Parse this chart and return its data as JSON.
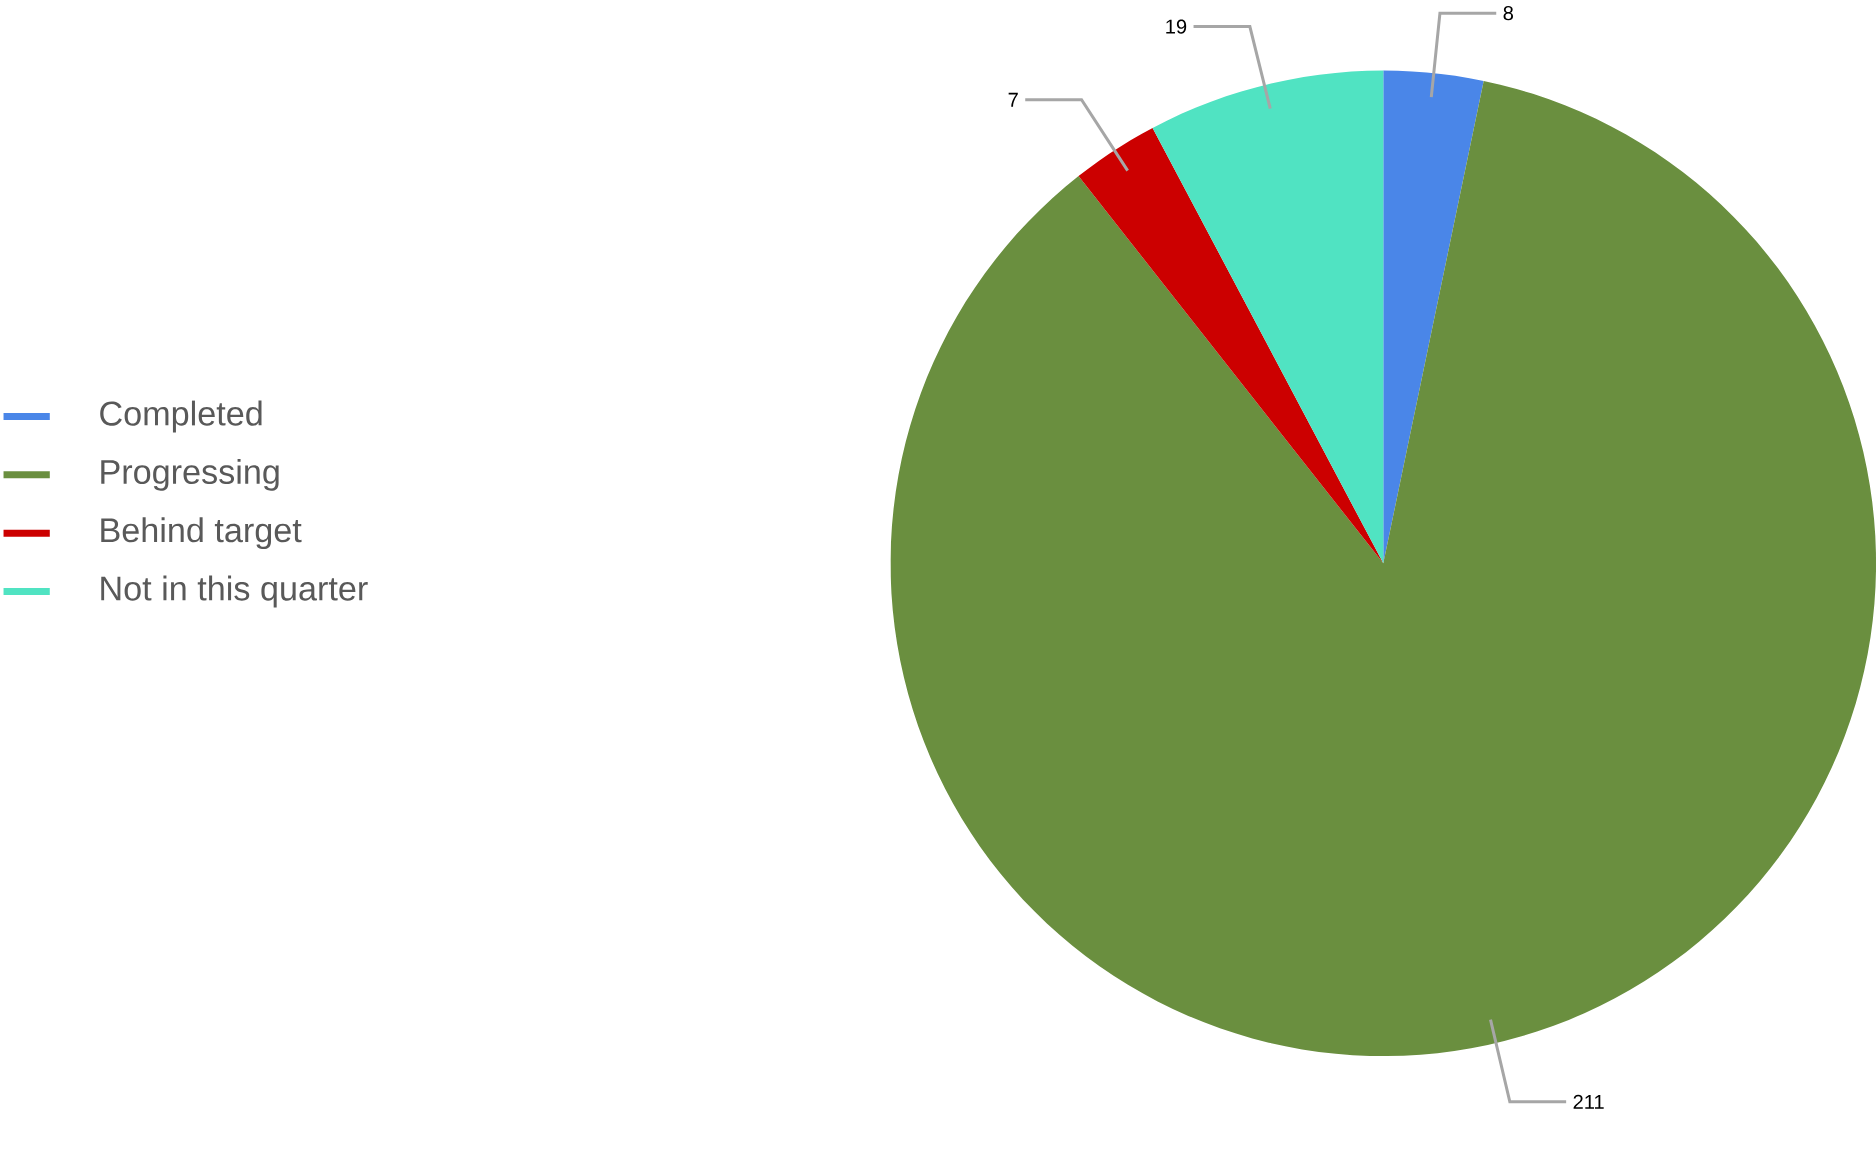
{
  "chart_data": {
    "type": "pie",
    "categories": [
      "Completed",
      "Progressing",
      "Behind target",
      "Not in this quarter"
    ],
    "values": [
      8,
      211,
      7,
      19
    ],
    "colors": [
      "#4a86e8",
      "#6a8f3f",
      "#cc0000",
      "#50e3c2"
    ],
    "data_labels": true,
    "legend": "left"
  }
}
